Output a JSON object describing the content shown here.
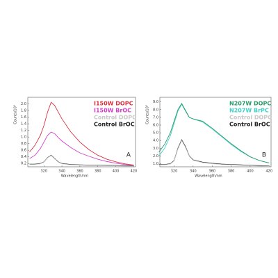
{
  "chart_data": [
    {
      "type": "line",
      "annotation": "A",
      "xlabel": "Wavelength/nm",
      "ylabel": "Counts/10³",
      "x": [
        304,
        310,
        316,
        320,
        324,
        328,
        332,
        336,
        340,
        350,
        360,
        370,
        380,
        390,
        400,
        410,
        420
      ],
      "series": [
        {
          "name": "I150W DOPC",
          "color": "#d8323f",
          "values": [
            0.55,
            0.75,
            1.05,
            1.35,
            1.75,
            2.05,
            1.95,
            1.75,
            1.55,
            1.15,
            0.85,
            0.62,
            0.45,
            0.33,
            0.25,
            0.19,
            0.15
          ]
        },
        {
          "name": "I150W BrOC",
          "color": "#d040c8",
          "values": [
            0.35,
            0.45,
            0.65,
            0.85,
            1.05,
            1.15,
            1.1,
            0.98,
            0.88,
            0.68,
            0.52,
            0.42,
            0.33,
            0.26,
            0.21,
            0.17,
            0.14
          ]
        },
        {
          "name": "Control DOPC",
          "color": "#c8c8c8",
          "values": [
            0.17,
            0.17,
            0.19,
            0.24,
            0.37,
            0.44,
            0.34,
            0.24,
            0.19,
            0.16,
            0.15,
            0.14,
            0.14,
            0.13,
            0.13,
            0.12,
            0.12
          ]
        },
        {
          "name": "Control BrOC",
          "color": "#222222",
          "values": [
            0.18,
            0.18,
            0.2,
            0.25,
            0.38,
            0.45,
            0.35,
            0.25,
            0.2,
            0.17,
            0.16,
            0.15,
            0.15,
            0.14,
            0.14,
            0.13,
            0.13
          ]
        }
      ],
      "xlim": [
        302,
        422
      ],
      "xticks": [
        320,
        340,
        360,
        380,
        400,
        420
      ],
      "ylim": [
        0.1,
        2.2
      ],
      "yticks": [
        0.2,
        0.4,
        0.6,
        0.8,
        {
          "value": 1,
          "label": "1.0"
        },
        1.2,
        1.4,
        1.6,
        1.8,
        {
          "value": 2,
          "label": "2.0"
        }
      ],
      "legend": "upper right"
    },
    {
      "type": "line",
      "annotation": "B",
      "xlabel": "Wavelength/nm",
      "ylabel": "Counts/10³",
      "x": [
        304,
        310,
        316,
        320,
        324,
        328,
        332,
        336,
        340,
        350,
        360,
        370,
        380,
        390,
        400,
        410,
        420
      ],
      "series": [
        {
          "name": "N207W DOPC",
          "color": "#2a9a6a",
          "values": [
            2.5,
            3.5,
            5.0,
            6.5,
            8.0,
            8.8,
            7.9,
            7.0,
            6.8,
            6.5,
            5.6,
            4.6,
            3.6,
            2.7,
            1.9,
            1.4,
            1.1
          ]
        },
        {
          "name": "N207W BrPC",
          "color": "#40d0c8",
          "values": [
            2.0,
            3.0,
            4.6,
            6.2,
            7.8,
            8.7,
            7.8,
            7.0,
            6.8,
            6.4,
            5.5,
            4.5,
            3.5,
            2.6,
            1.9,
            1.4,
            1.1
          ]
        },
        {
          "name": "Control DOPC",
          "color": "#c8c8c8",
          "values": [
            0.85,
            0.85,
            0.95,
            1.35,
            2.9,
            4.0,
            3.1,
            1.95,
            1.45,
            1.15,
            1.0,
            0.9,
            0.85,
            0.8,
            0.75,
            0.7,
            0.65
          ]
        },
        {
          "name": "Control BrOC",
          "color": "#222222",
          "values": [
            0.9,
            0.9,
            1.0,
            1.4,
            3.0,
            4.1,
            3.2,
            2.0,
            1.5,
            1.2,
            1.05,
            0.95,
            0.9,
            0.85,
            0.8,
            0.75,
            0.7
          ]
        }
      ],
      "xlim": [
        305,
        422
      ],
      "xticks": [
        320,
        340,
        360,
        380,
        400,
        420
      ],
      "ylim": [
        0.6,
        9.6
      ],
      "yticks": [
        {
          "value": 1,
          "label": "1.0"
        },
        {
          "value": 2,
          "label": "2.0"
        },
        {
          "value": 3,
          "label": "3.0"
        },
        {
          "value": 4,
          "label": "4.0"
        },
        {
          "value": 5,
          "label": "5.0"
        },
        {
          "value": 6,
          "label": "6.0"
        },
        {
          "value": 7,
          "label": "7.0"
        },
        {
          "value": 8,
          "label": "8.0"
        },
        {
          "value": 9,
          "label": "9.0"
        }
      ],
      "legend": "upper right"
    }
  ]
}
